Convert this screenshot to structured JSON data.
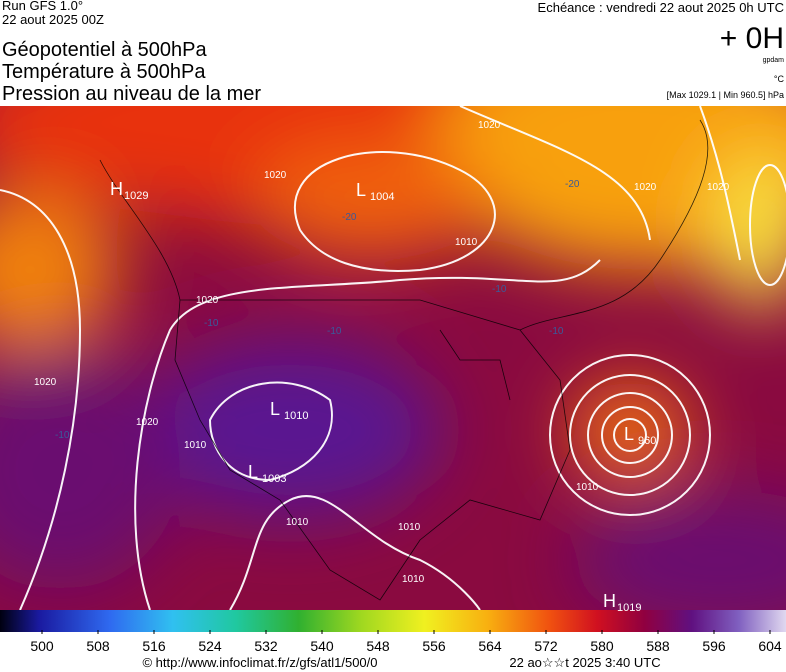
{
  "header": {
    "run": "Run GFS 1.0°",
    "date": "22 aout 2025 00Z",
    "echeance": "Echéance : vendredi 22 aout 2025 0h UTC",
    "offset": "+ 0H",
    "unit_gpdam": "gpdam",
    "unit_c": "°C",
    "maxmin": "[Max 1029.1 | Min 960.5] hPa",
    "title_lines": [
      "Géopotentiel à 500hPa",
      "Température à 500hPa",
      "Pression au niveau de la mer"
    ]
  },
  "map": {
    "pressure_centers": [
      {
        "symbol": "H",
        "value": "1029"
      },
      {
        "symbol": "L",
        "value": "1004"
      },
      {
        "symbol": "L",
        "value": "960"
      },
      {
        "symbol": "L",
        "value": "1003"
      },
      {
        "symbol": "L",
        "value": "1010"
      },
      {
        "symbol": "H",
        "value": "1019"
      }
    ],
    "isobar_labels": [
      "1020",
      "1020",
      "1010",
      "1020",
      "1020",
      "1020",
      "1010",
      "1010",
      "1010",
      "1010",
      "1010",
      "1020",
      "1020"
    ],
    "isotherm_labels": [
      "-20",
      "-20",
      "-10",
      "-10",
      "-10",
      "-10",
      "-10"
    ]
  },
  "colorbar": {
    "ticks": [
      500,
      508,
      516,
      524,
      532,
      540,
      548,
      556,
      564,
      572,
      580,
      588,
      596,
      604
    ]
  },
  "footer": {
    "source": "© http://www.infoclimat.fr/z/gfs/atl1/500/0",
    "time": "22 ao☆☆t 2025  3:40 UTC"
  }
}
